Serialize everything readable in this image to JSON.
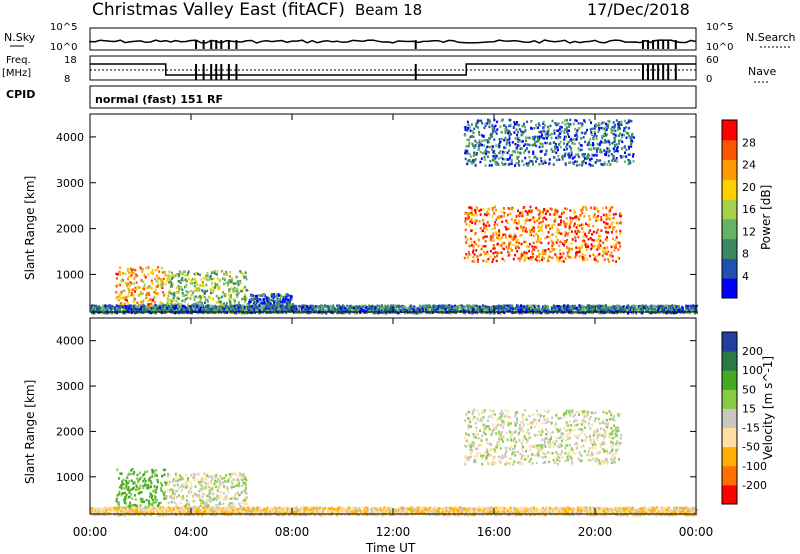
{
  "header": {
    "title": "Christmas Valley East (fitACF)",
    "beam": "Beam 18",
    "date": "17/Dec/2018"
  },
  "status_panels": {
    "nsky_label": "N.Sky",
    "nsky_ticks": [
      "10^5",
      "10^0"
    ],
    "nsearch_label": "N.Search",
    "nsearch_ticks": [
      "10^5",
      "10^0"
    ],
    "freq_label": "Freq.",
    "freq_unit": "[MHz]",
    "freq_ticks": [
      "18",
      "8"
    ],
    "nave_label": "Nave",
    "nave_ticks": [
      "60",
      "0"
    ],
    "cpid_label": "CPID",
    "cpid_value": "normal (fast) 151 RF"
  },
  "colors": {
    "power": [
      "#0000ff",
      "#2050b0",
      "#3a8a60",
      "#66b266",
      "#a6d24a",
      "#ffd000",
      "#ff9900",
      "#ff5500",
      "#ff0000"
    ],
    "velocity": [
      "#ff0000",
      "#ff7000",
      "#ffb000",
      "#ffe0a0",
      "#c8c8c0",
      "#88cc44",
      "#44aa22",
      "#2a7a44",
      "#2040a0"
    ]
  },
  "chart_data": [
    {
      "type": "heatmap",
      "panel": "power",
      "ylabel": "Slant Range [km]",
      "ylim": [
        180,
        4500
      ],
      "yticks": [
        "1000",
        "2000",
        "3000",
        "4000"
      ],
      "xlim": [
        "00:00",
        "24:00"
      ],
      "colorbar": {
        "label": "Power [dB]",
        "ticks": [
          "4",
          "8",
          "12",
          "16",
          "20",
          "24",
          "28"
        ],
        "range": [
          0,
          32
        ]
      },
      "regions": [
        {
          "t": [
            1.0,
            3.0
          ],
          "range": [
            180,
            1200
          ],
          "value": 22
        },
        {
          "t": [
            3.0,
            6.2
          ],
          "range": [
            200,
            1100
          ],
          "value": 14
        },
        {
          "t": [
            6.2,
            8.0
          ],
          "range": [
            200,
            600
          ],
          "value": 6
        },
        {
          "t": [
            14.8,
            21.0
          ],
          "range": [
            1300,
            2500
          ],
          "value": 26
        },
        {
          "t": [
            14.8,
            21.5
          ],
          "range": [
            3400,
            4400
          ],
          "value": 7
        },
        {
          "t": [
            0.0,
            24.0
          ],
          "range": [
            180,
            350
          ],
          "value": 8
        }
      ]
    },
    {
      "type": "heatmap",
      "panel": "velocity",
      "ylabel": "Slant Range [km]",
      "ylim": [
        180,
        4500
      ],
      "yticks": [
        "1000",
        "2000",
        "3000",
        "4000"
      ],
      "xlim": [
        "00:00",
        "24:00"
      ],
      "colorbar": {
        "label": "Velocity [m s^-1]",
        "ticks": [
          "200",
          "100",
          "50",
          "15",
          "-15",
          "-50",
          "-100",
          "-200"
        ]
      },
      "regions": [
        {
          "t": [
            1.0,
            3.0
          ],
          "range": [
            180,
            1200
          ],
          "value": 60
        },
        {
          "t": [
            3.0,
            6.2
          ],
          "range": [
            200,
            1100
          ],
          "value": 0
        },
        {
          "t": [
            14.8,
            21.0
          ],
          "range": [
            1300,
            2500
          ],
          "value": 0
        },
        {
          "t": [
            0.0,
            24.0
          ],
          "range": [
            180,
            350
          ],
          "value": -40
        }
      ]
    }
  ],
  "x_axis": {
    "ticks": [
      "00:00",
      "04:00",
      "08:00",
      "12:00",
      "16:00",
      "20:00",
      "00:00"
    ],
    "label": "Time UT"
  }
}
